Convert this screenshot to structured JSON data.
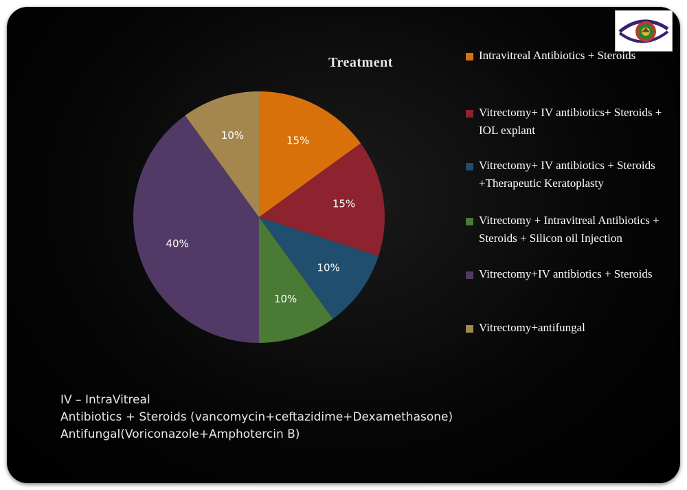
{
  "chart_data": {
    "type": "pie",
    "title": "Treatment",
    "legend_position": "right",
    "slices": [
      {
        "label": "Intravitreal Antibiotics + Steroids",
        "value": 15,
        "display": "15%",
        "color": "#d9710b"
      },
      {
        "label": "Vitrectomy+ IV antibiotics+ Steroids + IOL explant",
        "value": 15,
        "display": "15%",
        "color": "#8e2330"
      },
      {
        "label": "Vitrectomy+ IV antibiotics + Steroids +Therapeutic Keratoplasty",
        "value": 10,
        "display": "10%",
        "color": "#1f4e6e"
      },
      {
        "label": "Vitrectomy + Intravitreal Antibiotics + Steroids + Silicon oil Injection",
        "value": 10,
        "display": "10%",
        "color": "#4b7a35"
      },
      {
        "label": "Vitrectomy+IV antibiotics + Steroids",
        "value": 40,
        "display": "40%",
        "color": "#513b66"
      },
      {
        "label": "Vitrectomy+antifungal",
        "value": 10,
        "display": "10%",
        "color": "#a4874f"
      }
    ]
  },
  "legend": {
    "items": [
      {
        "text": "Intravitreal Antibiotics + Steroids",
        "color": "#d9710b"
      },
      {
        "text": "Vitrectomy+ IV antibiotics+ Steroids + IOL explant",
        "color": "#8e2330"
      },
      {
        "text": "Vitrectomy+ IV antibiotics + Steroids +Therapeutic Keratoplasty",
        "color": "#1f4e6e"
      },
      {
        "text": "Vitrectomy + Intravitreal Antibiotics + Steroids + Silicon oil Injection",
        "color": "#4b7a35"
      },
      {
        "text": "Vitrectomy+IV antibiotics + Steroids",
        "color": "#513b66"
      },
      {
        "text": "Vitrectomy+antifungal",
        "color": "#a4874f"
      }
    ]
  },
  "notes": {
    "line1": "IV – IntraVitreal",
    "line2": "Antibiotics + Steroids (vancomycin+ceftazidime+Dexamethasone)",
    "line3": "Antifungal(Voriconazole+Amphotercin B)"
  },
  "logo": {
    "icon": "eye-logo-icon"
  }
}
